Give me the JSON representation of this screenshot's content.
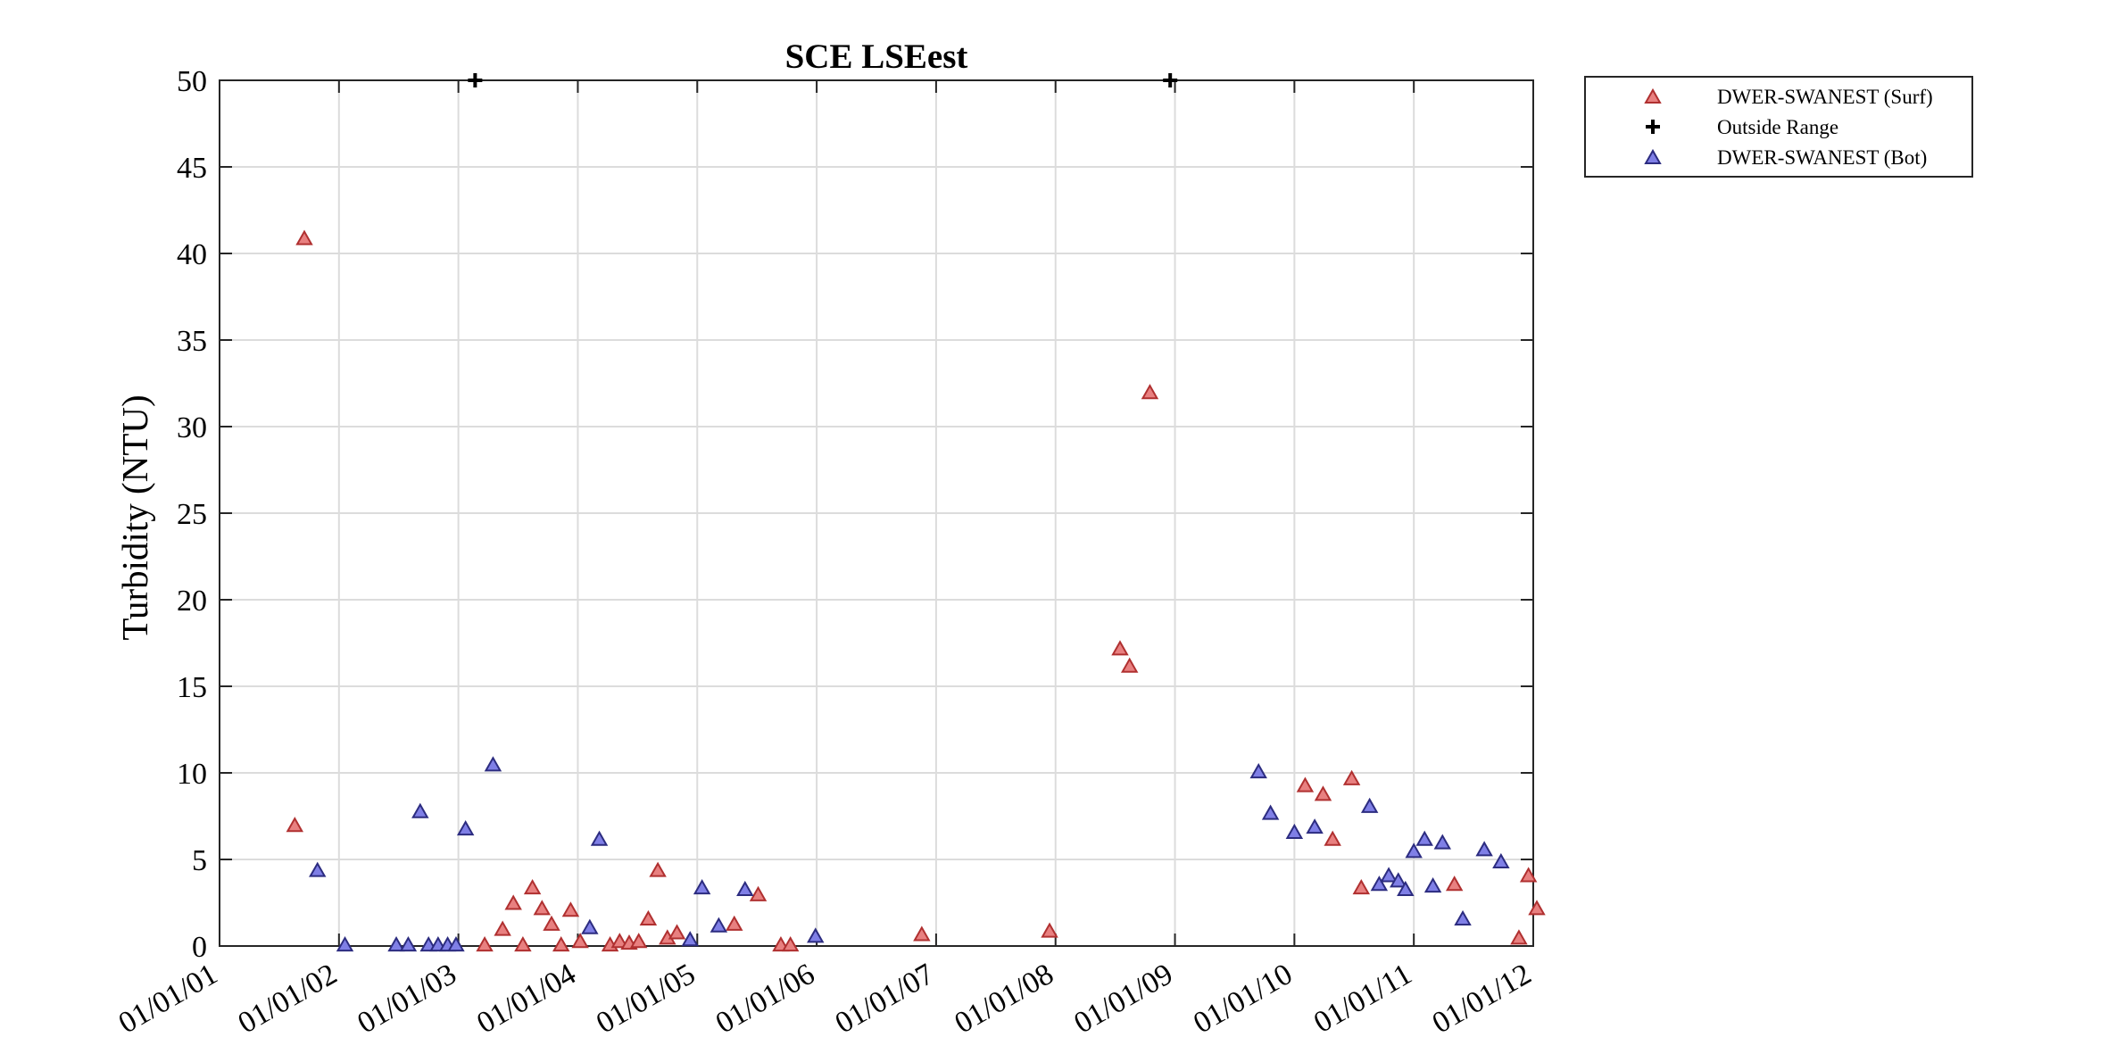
{
  "chart_data": {
    "type": "scatter",
    "title": "SCE LSEest",
    "xlabel": "",
    "ylabel": "Turbidity (NTU)",
    "ylim": [
      0,
      50
    ],
    "yticks": [
      0,
      5,
      10,
      15,
      20,
      25,
      30,
      35,
      40,
      45,
      50
    ],
    "xlim": [
      0,
      11
    ],
    "xtick_labels": [
      "01/01/01",
      "01/01/02",
      "01/01/03",
      "01/01/04",
      "01/01/05",
      "01/01/06",
      "01/01/07",
      "01/01/08",
      "01/01/09",
      "01/01/10",
      "01/01/11",
      "01/01/12"
    ],
    "grid": true,
    "legend_position": "outside-top-right",
    "series": [
      {
        "name": "DWER-SWANEST (Surf)",
        "marker": "triangle",
        "color": "#E88080",
        "edge": "#B03030",
        "points": [
          [
            0.63,
            7.0
          ],
          [
            0.71,
            40.9
          ],
          [
            2.22,
            0.1
          ],
          [
            2.37,
            1.0
          ],
          [
            2.46,
            2.5
          ],
          [
            2.54,
            0.1
          ],
          [
            2.62,
            3.4
          ],
          [
            2.7,
            2.2
          ],
          [
            2.78,
            1.3
          ],
          [
            2.86,
            0.1
          ],
          [
            2.94,
            2.1
          ],
          [
            3.02,
            0.3
          ],
          [
            3.27,
            0.1
          ],
          [
            3.35,
            0.3
          ],
          [
            3.43,
            0.2
          ],
          [
            3.51,
            0.3
          ],
          [
            3.59,
            1.6
          ],
          [
            3.67,
            4.4
          ],
          [
            3.75,
            0.5
          ],
          [
            3.83,
            0.8
          ],
          [
            4.31,
            1.3
          ],
          [
            4.51,
            3.0
          ],
          [
            4.7,
            0.1
          ],
          [
            4.78,
            0.1
          ],
          [
            5.88,
            0.7
          ],
          [
            6.95,
            0.9
          ],
          [
            7.54,
            17.2
          ],
          [
            7.62,
            16.2
          ],
          [
            7.79,
            32.0
          ],
          [
            9.09,
            9.3
          ],
          [
            9.24,
            8.8
          ],
          [
            9.32,
            6.2
          ],
          [
            9.48,
            9.7
          ],
          [
            9.56,
            3.4
          ],
          [
            10.34,
            3.6
          ],
          [
            10.88,
            0.5
          ],
          [
            10.96,
            4.1
          ],
          [
            11.03,
            2.2
          ]
        ]
      },
      {
        "name": "Outside Range",
        "marker": "plus",
        "color": "#000000",
        "points": [
          [
            2.14,
            50
          ],
          [
            7.96,
            50
          ]
        ]
      },
      {
        "name": "DWER-SWANEST (Bot)",
        "marker": "triangle",
        "color": "#7F7FE6",
        "edge": "#2C2C80",
        "points": [
          [
            0.82,
            4.4
          ],
          [
            1.05,
            0.1
          ],
          [
            1.48,
            0.1
          ],
          [
            1.58,
            0.1
          ],
          [
            1.68,
            7.8
          ],
          [
            1.75,
            0.1
          ],
          [
            1.83,
            0.1
          ],
          [
            1.91,
            0.1
          ],
          [
            1.98,
            0.1
          ],
          [
            2.06,
            6.8
          ],
          [
            2.29,
            10.5
          ],
          [
            3.1,
            1.1
          ],
          [
            3.18,
            6.2
          ],
          [
            3.94,
            0.4
          ],
          [
            4.04,
            3.4
          ],
          [
            4.18,
            1.2
          ],
          [
            4.4,
            3.3
          ],
          [
            4.99,
            0.6
          ],
          [
            8.7,
            10.1
          ],
          [
            8.8,
            7.7
          ],
          [
            9.0,
            6.6
          ],
          [
            9.17,
            6.9
          ],
          [
            9.63,
            8.1
          ],
          [
            9.71,
            3.6
          ],
          [
            9.79,
            4.1
          ],
          [
            9.87,
            3.8
          ],
          [
            9.93,
            3.3
          ],
          [
            10.0,
            5.5
          ],
          [
            10.09,
            6.2
          ],
          [
            10.16,
            3.5
          ],
          [
            10.24,
            6.0
          ],
          [
            10.41,
            1.6
          ],
          [
            10.59,
            5.6
          ],
          [
            10.73,
            4.9
          ]
        ]
      }
    ]
  }
}
